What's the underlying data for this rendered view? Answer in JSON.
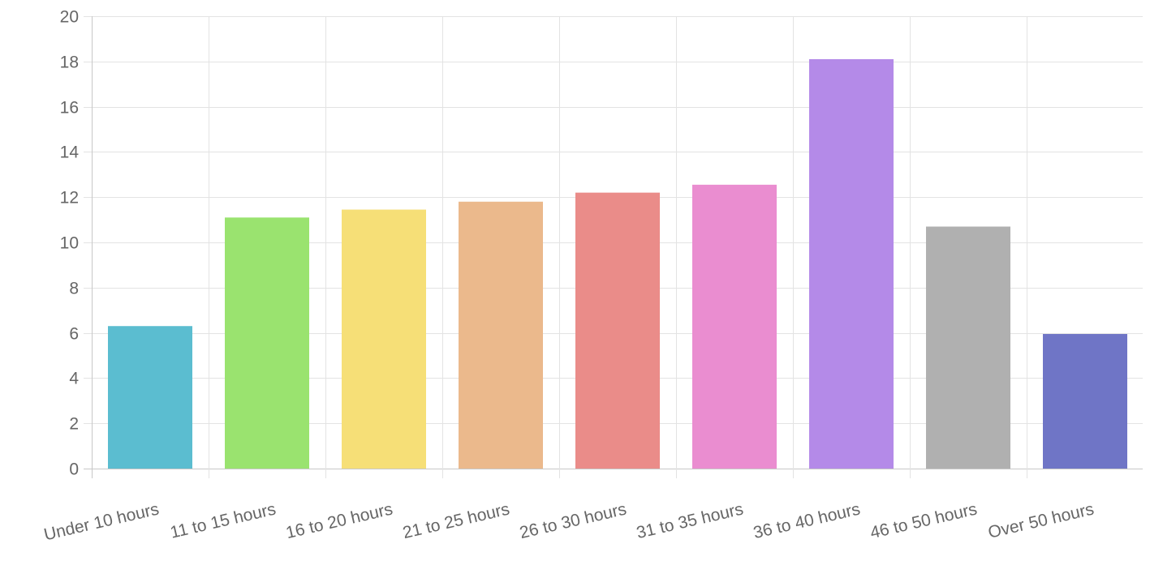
{
  "chart_data": {
    "type": "bar",
    "title": "",
    "xlabel": "",
    "ylabel": "",
    "categories": [
      "Under 10 hours",
      "11 to 15 hours",
      "16 to 20 hours",
      "21 to 25 hours",
      "26 to 30 hours",
      "31 to 35 hours",
      "36 to 40 hours",
      "46 to 50 hours",
      "Over 50 hours"
    ],
    "values": [
      6.3,
      11.1,
      11.45,
      11.8,
      12.2,
      12.55,
      18.1,
      10.7,
      5.95
    ],
    "colors": [
      "#5bbdd0",
      "#9ae36f",
      "#f6df77",
      "#ebb98c",
      "#ea8c89",
      "#ea8dd0",
      "#b48ae8",
      "#b0b0b0",
      "#6f75c6"
    ],
    "ylim": [
      0,
      20
    ],
    "yticks": [
      0,
      2,
      4,
      6,
      8,
      10,
      12,
      14,
      16,
      18,
      20
    ],
    "grid": true,
    "legend": "none"
  }
}
